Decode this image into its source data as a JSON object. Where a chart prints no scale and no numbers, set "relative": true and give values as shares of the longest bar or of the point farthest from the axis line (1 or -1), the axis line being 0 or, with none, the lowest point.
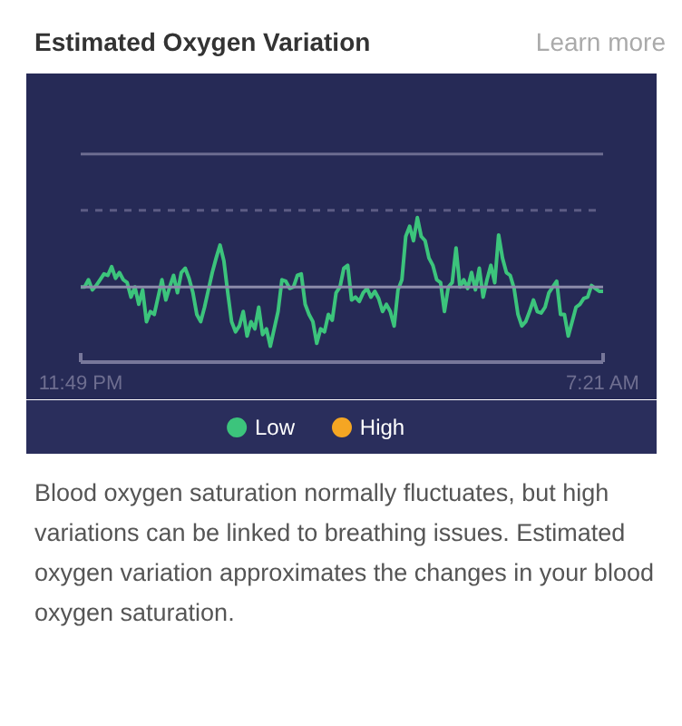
{
  "chart_data": {
    "type": "line",
    "title": "Estimated Oxygen Variation",
    "relative": true,
    "categories": [
      "11:49 PM",
      null,
      null,
      null,
      null,
      null,
      null,
      null,
      null,
      null,
      null,
      null,
      null,
      null,
      null,
      null,
      null,
      null,
      null,
      null,
      null,
      null,
      null,
      null,
      null,
      null,
      null,
      null,
      null,
      null,
      null,
      null,
      null,
      null,
      null,
      null,
      null,
      null,
      null,
      null,
      null,
      null,
      null,
      null,
      null,
      null,
      null,
      null,
      null,
      null,
      null,
      null,
      null,
      null,
      null,
      null,
      null,
      null,
      null,
      null,
      null,
      null,
      null,
      null,
      null,
      null,
      null,
      null,
      null,
      null,
      null,
      null,
      null,
      null,
      null,
      null,
      null,
      null,
      null,
      null,
      null,
      null,
      null,
      null,
      null,
      null,
      null,
      null,
      null,
      null,
      null,
      null,
      null,
      null,
      null,
      null,
      null,
      null,
      null,
      null,
      null,
      null,
      null,
      null,
      null,
      null,
      null,
      null,
      null,
      null,
      null,
      null,
      null,
      null,
      null,
      null,
      null,
      null,
      null,
      null,
      null,
      null,
      null,
      null,
      null,
      null,
      null,
      null,
      null,
      null,
      null,
      null,
      null,
      null,
      null,
      "7:21 AM"
    ],
    "series": [
      {
        "name": "Low",
        "color": "#3cc47c",
        "values": [
          0.52,
          0.52,
          0.57,
          0.5,
          0.53,
          0.57,
          0.61,
          0.6,
          0.66,
          0.58,
          0.62,
          0.57,
          0.55,
          0.45,
          0.52,
          0.4,
          0.5,
          0.28,
          0.35,
          0.33,
          0.45,
          0.57,
          0.43,
          0.52,
          0.6,
          0.48,
          0.62,
          0.65,
          0.58,
          0.48,
          0.33,
          0.28,
          0.38,
          0.5,
          0.62,
          0.72,
          0.81,
          0.7,
          0.48,
          0.28,
          0.21,
          0.25,
          0.35,
          0.18,
          0.28,
          0.23,
          0.38,
          0.19,
          0.23,
          0.11,
          0.23,
          0.35,
          0.57,
          0.56,
          0.51,
          0.52,
          0.6,
          0.61,
          0.4,
          0.33,
          0.28,
          0.13,
          0.23,
          0.21,
          0.33,
          0.29,
          0.48,
          0.52,
          0.65,
          0.67,
          0.43,
          0.45,
          0.42,
          0.48,
          0.51,
          0.45,
          0.49,
          0.44,
          0.35,
          0.4,
          0.35,
          0.25,
          0.5,
          0.57,
          0.87,
          0.94,
          0.84,
          1.0,
          0.87,
          0.84,
          0.72,
          0.67,
          0.57,
          0.55,
          0.35,
          0.52,
          0.55,
          0.79,
          0.52,
          0.57,
          0.51,
          0.62,
          0.5,
          0.65,
          0.45,
          0.57,
          0.67,
          0.55,
          0.88,
          0.72,
          0.62,
          0.6,
          0.51,
          0.33,
          0.25,
          0.28,
          0.35,
          0.43,
          0.35,
          0.34,
          0.38,
          0.48,
          0.52,
          0.56,
          0.33,
          0.33,
          0.18,
          0.28,
          0.38,
          0.4,
          0.44,
          0.45,
          0.53,
          0.51,
          0.49,
          0.49
        ]
      },
      {
        "name": "High",
        "color": "#f5a623",
        "values": [
          null,
          null,
          null,
          null,
          null,
          null,
          null,
          null,
          null,
          null,
          null,
          null,
          null,
          null,
          null,
          null,
          null,
          null,
          null,
          null,
          null,
          null,
          null,
          null,
          null,
          null,
          null,
          null,
          null,
          null,
          null,
          null,
          null,
          null,
          null,
          null,
          null,
          null,
          null,
          null,
          null,
          null,
          null,
          null,
          null,
          null,
          null,
          null,
          null,
          null,
          null,
          null,
          null,
          null,
          null,
          null,
          null,
          null,
          null,
          null,
          null,
          null,
          null,
          null,
          null,
          null,
          null,
          null,
          null,
          null,
          null,
          null,
          null,
          null,
          null,
          null,
          null,
          null,
          null,
          null,
          null,
          null,
          null,
          null,
          null,
          null,
          null,
          null,
          null,
          null,
          null,
          null,
          null,
          null,
          null,
          null,
          null,
          null,
          null,
          null,
          null,
          null,
          null,
          null,
          null,
          null,
          null,
          null,
          null,
          null,
          null,
          null,
          null,
          null,
          null,
          null,
          null,
          null,
          null,
          null,
          null,
          null,
          null,
          null,
          null,
          null,
          null,
          null,
          null,
          null,
          null,
          null,
          null,
          null,
          null,
          null
        ]
      }
    ],
    "ref_lines": [
      {
        "axis": "y",
        "value": 0.52,
        "color": "#8c8caa",
        "line_style": "solid"
      },
      {
        "axis": "y",
        "value": 1.05,
        "color": "#5c5c84",
        "line_style": "dashed"
      },
      {
        "axis": "y",
        "value": 1.44,
        "color": "#6c6c90",
        "line_style": "solid"
      }
    ],
    "legend": "bottom",
    "grid": false,
    "marker": "none",
    "line_style": "solid",
    "annotations": [
      "Learn more",
      "Blood oxygen saturation normally fluctuates, but high variations can be linked to breathing issues. Estimated oxygen variation approximates the changes in your blood oxygen saturation."
    ]
  }
}
